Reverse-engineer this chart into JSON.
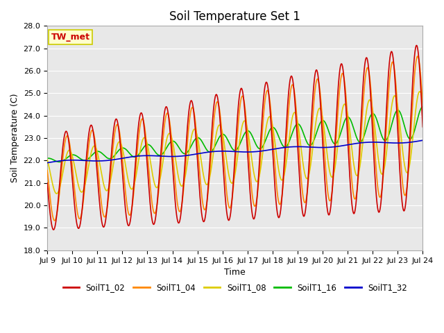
{
  "title": "Soil Temperature Set 1",
  "xlabel": "Time",
  "ylabel": "Soil Temperature (C)",
  "ylim": [
    18.0,
    28.0
  ],
  "xlim": [
    0,
    360
  ],
  "yticks": [
    18.0,
    19.0,
    20.0,
    21.0,
    22.0,
    23.0,
    24.0,
    25.0,
    26.0,
    27.0,
    28.0
  ],
  "xtick_positions": [
    0,
    24,
    48,
    72,
    96,
    120,
    144,
    168,
    192,
    216,
    240,
    264,
    288,
    312,
    336,
    360
  ],
  "xtick_labels": [
    "Jul 9",
    "Jul 10",
    "Jul 11",
    "Jul 12",
    "Jul 13",
    "Jul 14",
    "Jul 15",
    "Jul 16",
    "Jul 17",
    "Jul 18",
    "Jul 19",
    "Jul 20",
    "Jul 21",
    "Jul 22",
    "Jul 23",
    "Jul 24"
  ],
  "series_colors": [
    "#cc0000",
    "#ff8800",
    "#ddcc00",
    "#00bb00",
    "#0000cc"
  ],
  "series_labels": [
    "SoilT1_02",
    "SoilT1_04",
    "SoilT1_08",
    "SoilT1_16",
    "SoilT1_32"
  ],
  "annotation_text": "TW_met",
  "annotation_color": "#cc0000",
  "annotation_bg": "#ffffcc",
  "annotation_edge": "#cccc00",
  "fig_bg_color": "#ffffff",
  "plot_bg_color": "#e8e8e8",
  "grid_color": "#ffffff",
  "linewidth": 1.2,
  "title_fontsize": 12,
  "axis_fontsize": 9,
  "tick_fontsize": 8
}
